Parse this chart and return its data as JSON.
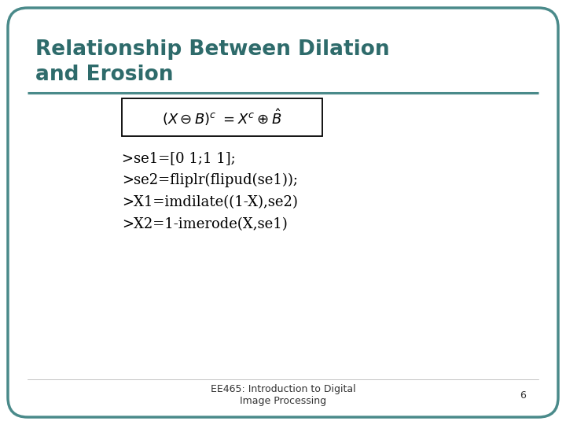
{
  "title_line1": "Relationship Between Dilation",
  "title_line2": "and Erosion",
  "title_color": "#2e6b6b",
  "title_fontsize": 19,
  "bg_color": "#ffffff",
  "border_color": "#4a8a8a",
  "formula_fontsize": 13,
  "code_lines": [
    ">se1=[0 1;1 1];",
    ">se2=fliplr(flipud(se1));",
    ">X1=imdilate((1-X),se2)",
    ">X2=1-imerode(X,se1)"
  ],
  "code_fontsize": 13,
  "footer_text": "EE465: Introduction to Digital\nImage Processing",
  "footer_page": "6",
  "footer_fontsize": 9
}
